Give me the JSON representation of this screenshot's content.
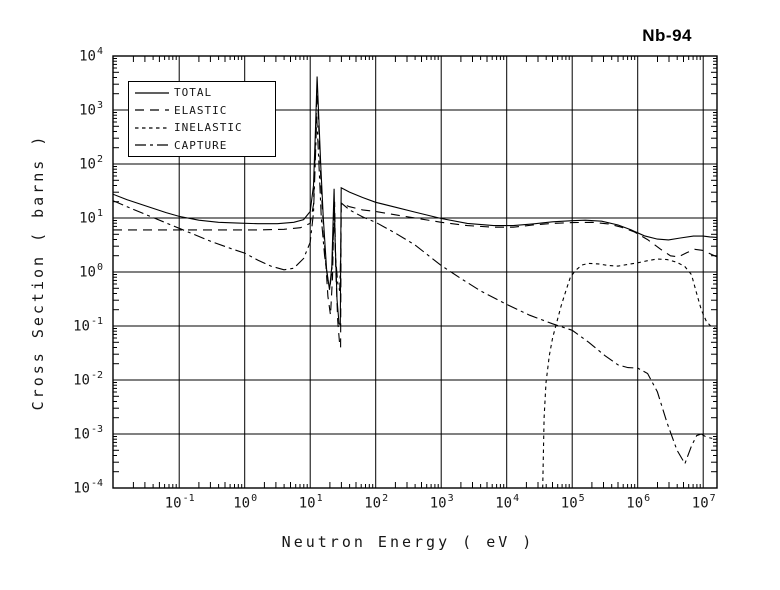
{
  "chart_data": {
    "type": "line",
    "title": "Nb-94",
    "xlabel": "Neutron Energy ( eV )",
    "ylabel": "Cross Section ( barns )",
    "x_scale": "log",
    "y_scale": "log",
    "x_log_range": [
      -2.01,
      7.21
    ],
    "y_log_range": [
      -4,
      4
    ],
    "x_tick_exponents": [
      -1,
      0,
      1,
      2,
      3,
      4,
      5,
      6,
      7
    ],
    "y_tick_exponents": [
      4,
      3,
      2,
      1,
      0,
      -1,
      -2,
      -3,
      -4
    ],
    "grid": true,
    "legend_position": "top-left-inside",
    "line_color": "#000000",
    "background": "#ffffff",
    "series": [
      {
        "name": "TOTAL",
        "line_style": "solid",
        "points_log10": [
          [
            -2.01,
            1.44
          ],
          [
            -1.8,
            1.34
          ],
          [
            -1.5,
            1.22
          ],
          [
            -1.2,
            1.1
          ],
          [
            -1.0,
            1.03
          ],
          [
            -0.7,
            0.96
          ],
          [
            -0.4,
            0.92
          ],
          [
            -0.1,
            0.905
          ],
          [
            0.2,
            0.895
          ],
          [
            0.5,
            0.895
          ],
          [
            0.75,
            0.92
          ],
          [
            0.9,
            0.97
          ],
          [
            1.0,
            1.12
          ],
          [
            1.05,
            1.6
          ],
          [
            1.08,
            2.6
          ],
          [
            1.105,
            3.62
          ],
          [
            1.13,
            2.9
          ],
          [
            1.16,
            2.0
          ],
          [
            1.2,
            1.0
          ],
          [
            1.25,
            0.05
          ],
          [
            1.295,
            -0.33
          ],
          [
            1.33,
            0.1
          ],
          [
            1.352,
            1.0
          ],
          [
            1.365,
            1.54
          ],
          [
            1.38,
            0.6
          ],
          [
            1.41,
            -0.5
          ],
          [
            1.44,
            -0.95
          ],
          [
            1.46,
            -0.98
          ],
          [
            1.468,
            0.6
          ],
          [
            1.474,
            1.56
          ],
          [
            1.6,
            1.48
          ],
          [
            1.8,
            1.38
          ],
          [
            2.0,
            1.29
          ],
          [
            2.3,
            1.2
          ],
          [
            2.6,
            1.11
          ],
          [
            3.0,
            0.99
          ],
          [
            3.4,
            0.9
          ],
          [
            3.8,
            0.86
          ],
          [
            4.1,
            0.86
          ],
          [
            4.4,
            0.89
          ],
          [
            4.7,
            0.93
          ],
          [
            5.0,
            0.95
          ],
          [
            5.2,
            0.96
          ],
          [
            5.45,
            0.94
          ],
          [
            5.7,
            0.87
          ],
          [
            5.9,
            0.78
          ],
          [
            6.1,
            0.67
          ],
          [
            6.3,
            0.61
          ],
          [
            6.47,
            0.595
          ],
          [
            6.65,
            0.63
          ],
          [
            6.85,
            0.665
          ],
          [
            7.0,
            0.665
          ],
          [
            7.1,
            0.65
          ],
          [
            7.21,
            0.64
          ]
        ]
      },
      {
        "name": "ELASTIC",
        "line_style": "long-dash",
        "points_log10": [
          [
            -2.01,
            0.78
          ],
          [
            -1.2,
            0.78
          ],
          [
            -0.4,
            0.78
          ],
          [
            0.2,
            0.78
          ],
          [
            0.6,
            0.79
          ],
          [
            0.85,
            0.82
          ],
          [
            1.0,
            0.9
          ],
          [
            1.05,
            1.25
          ],
          [
            1.08,
            2.4
          ],
          [
            1.105,
            3.44
          ],
          [
            1.13,
            2.7
          ],
          [
            1.17,
            1.5
          ],
          [
            1.22,
            0.5
          ],
          [
            1.27,
            -0.45
          ],
          [
            1.31,
            -0.8
          ],
          [
            1.34,
            -0.1
          ],
          [
            1.36,
            1.0
          ],
          [
            1.372,
            1.3
          ],
          [
            1.39,
            0.1
          ],
          [
            1.42,
            -0.9
          ],
          [
            1.45,
            -1.35
          ],
          [
            1.465,
            -1.4
          ],
          [
            1.474,
            1.27
          ],
          [
            1.6,
            1.21
          ],
          [
            1.8,
            1.15
          ],
          [
            2.0,
            1.12
          ],
          [
            2.3,
            1.06
          ],
          [
            2.6,
            1.0
          ],
          [
            3.0,
            0.92
          ],
          [
            3.4,
            0.86
          ],
          [
            3.8,
            0.83
          ],
          [
            4.1,
            0.83
          ],
          [
            4.4,
            0.87
          ],
          [
            4.7,
            0.9
          ],
          [
            5.0,
            0.915
          ],
          [
            5.3,
            0.92
          ],
          [
            5.55,
            0.89
          ],
          [
            5.75,
            0.83
          ],
          [
            5.95,
            0.74
          ],
          [
            6.15,
            0.6
          ],
          [
            6.35,
            0.42
          ],
          [
            6.5,
            0.3
          ],
          [
            6.62,
            0.28
          ],
          [
            6.75,
            0.36
          ],
          [
            6.87,
            0.42
          ],
          [
            7.0,
            0.4
          ],
          [
            7.1,
            0.34
          ],
          [
            7.21,
            0.28
          ]
        ]
      },
      {
        "name": "INELASTIC",
        "line_style": "short-dash",
        "points_log10": [
          [
            4.55,
            -4.0
          ],
          [
            4.57,
            -2.7
          ],
          [
            4.6,
            -2.05
          ],
          [
            4.65,
            -1.55
          ],
          [
            4.7,
            -1.22
          ],
          [
            4.76,
            -0.95
          ],
          [
            4.83,
            -0.63
          ],
          [
            4.9,
            -0.36
          ],
          [
            4.97,
            -0.1
          ],
          [
            5.05,
            0.03
          ],
          [
            5.15,
            0.13
          ],
          [
            5.25,
            0.16
          ],
          [
            5.4,
            0.15
          ],
          [
            5.55,
            0.12
          ],
          [
            5.7,
            0.11
          ],
          [
            5.85,
            0.14
          ],
          [
            6.0,
            0.17
          ],
          [
            6.15,
            0.21
          ],
          [
            6.3,
            0.24
          ],
          [
            6.45,
            0.23
          ],
          [
            6.6,
            0.18
          ],
          [
            6.72,
            0.1
          ],
          [
            6.82,
            -0.05
          ],
          [
            6.9,
            -0.4
          ],
          [
            6.97,
            -0.7
          ],
          [
            7.05,
            -0.92
          ],
          [
            7.13,
            -1.02
          ],
          [
            7.21,
            -1.05
          ]
        ]
      },
      {
        "name": "CAPTURE",
        "line_style": "dash-dot",
        "points_log10": [
          [
            -2.01,
            1.32
          ],
          [
            -1.7,
            1.16
          ],
          [
            -1.4,
            1.01
          ],
          [
            -1.1,
            0.86
          ],
          [
            -0.8,
            0.71
          ],
          [
            -0.5,
            0.56
          ],
          [
            -0.2,
            0.43
          ],
          [
            0.0,
            0.35
          ],
          [
            0.2,
            0.22
          ],
          [
            0.4,
            0.11
          ],
          [
            0.6,
            0.04
          ],
          [
            0.75,
            0.07
          ],
          [
            0.9,
            0.25
          ],
          [
            1.0,
            0.55
          ],
          [
            1.05,
            1.1
          ],
          [
            1.08,
            2.1
          ],
          [
            1.1,
            2.88
          ],
          [
            1.13,
            2.1
          ],
          [
            1.17,
            1.0
          ],
          [
            1.22,
            0.3
          ],
          [
            1.27,
            -0.15
          ],
          [
            1.3,
            -0.3
          ],
          [
            1.33,
            0.0
          ],
          [
            1.355,
            0.7
          ],
          [
            1.37,
            0.95
          ],
          [
            1.39,
            0.25
          ],
          [
            1.42,
            -0.2
          ],
          [
            1.45,
            -0.35
          ],
          [
            1.468,
            0.4
          ],
          [
            1.474,
            1.28
          ],
          [
            1.6,
            1.15
          ],
          [
            1.8,
            1.02
          ],
          [
            2.0,
            0.92
          ],
          [
            2.3,
            0.72
          ],
          [
            2.6,
            0.5
          ],
          [
            3.0,
            0.12
          ],
          [
            3.3,
            -0.12
          ],
          [
            3.6,
            -0.35
          ],
          [
            4.0,
            -0.6
          ],
          [
            4.35,
            -0.8
          ],
          [
            4.7,
            -0.96
          ],
          [
            5.0,
            -1.08
          ],
          [
            5.25,
            -1.3
          ],
          [
            5.5,
            -1.55
          ],
          [
            5.7,
            -1.72
          ],
          [
            5.85,
            -1.77
          ],
          [
            6.0,
            -1.78
          ],
          [
            6.15,
            -1.88
          ],
          [
            6.3,
            -2.22
          ],
          [
            6.45,
            -2.8
          ],
          [
            6.6,
            -3.3
          ],
          [
            6.72,
            -3.55
          ],
          [
            6.82,
            -3.22
          ],
          [
            6.9,
            -3.03
          ],
          [
            6.97,
            -3.0
          ],
          [
            7.05,
            -3.06
          ],
          [
            7.13,
            -3.08
          ],
          [
            7.21,
            -3.08
          ]
        ]
      }
    ]
  }
}
